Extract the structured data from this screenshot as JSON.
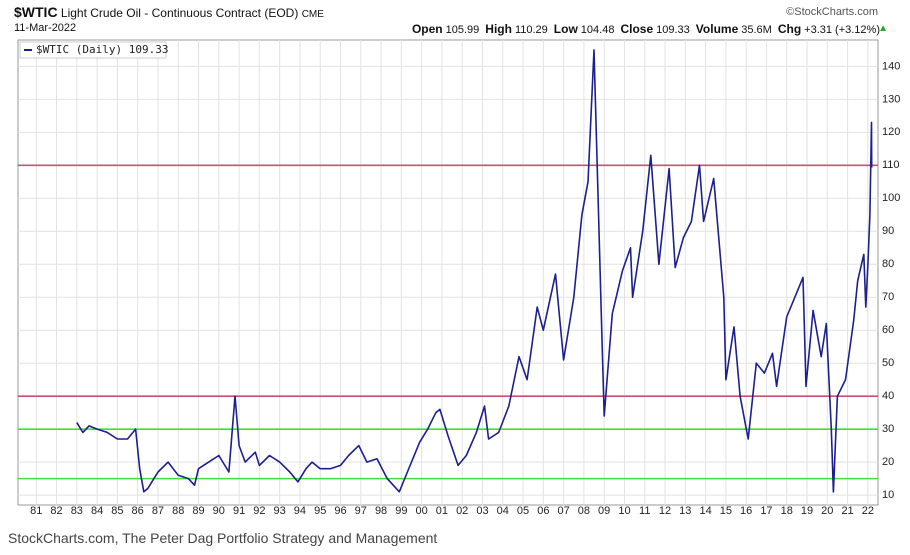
{
  "chart_data": {
    "type": "line",
    "title": "$WTIC",
    "subtitle": "Light Crude Oil - Continuous Contract (EOD)",
    "exchange": "CME",
    "source": "©StockCharts.com",
    "date": "11-Mar-2022",
    "quote": [
      {
        "label": "Open",
        "value": "105.99"
      },
      {
        "label": "High",
        "value": "110.29"
      },
      {
        "label": "Low",
        "value": "104.48"
      },
      {
        "label": "Close",
        "value": "109.33"
      },
      {
        "label": "Volume",
        "value": "35.6M"
      },
      {
        "label": "Chg",
        "value": "+3.31 (+3.12%)"
      }
    ],
    "caption": "StockCharts.com, The Peter Dag Portfolio Strategy and Management",
    "series": [
      {
        "name": "$WTIC (Daily) 109.33",
        "color": "#1b1f8f",
        "x": [
          1983.0,
          1983.3,
          1983.6,
          1984.0,
          1984.5,
          1985.0,
          1985.5,
          1985.9,
          1986.1,
          1986.3,
          1986.5,
          1986.8,
          1987.0,
          1987.5,
          1988.0,
          1988.5,
          1988.8,
          1989.0,
          1989.5,
          1990.0,
          1990.5,
          1990.8,
          1991.0,
          1991.3,
          1991.8,
          1992.0,
          1992.5,
          1993.0,
          1993.5,
          1993.9,
          1994.3,
          1994.6,
          1995.0,
          1995.5,
          1996.0,
          1996.4,
          1996.9,
          1997.3,
          1997.8,
          1998.3,
          1998.9,
          1999.3,
          1999.9,
          2000.3,
          2000.7,
          2000.9,
          2001.3,
          2001.8,
          2002.2,
          2002.7,
          2003.1,
          2003.3,
          2003.8,
          2004.3,
          2004.8,
          2005.2,
          2005.7,
          2006.0,
          2006.6,
          2007.0,
          2007.5,
          2007.9,
          2008.2,
          2008.5,
          2008.9,
          2009.0,
          2009.4,
          2009.9,
          2010.3,
          2010.4,
          2010.9,
          2011.3,
          2011.7,
          2012.2,
          2012.5,
          2012.9,
          2013.3,
          2013.7,
          2013.9,
          2014.4,
          2014.9,
          2015.0,
          2015.4,
          2015.7,
          2016.1,
          2016.5,
          2016.9,
          2017.3,
          2017.5,
          2018.0,
          2018.8,
          2018.95,
          2019.3,
          2019.7,
          2019.95,
          2020.2,
          2020.3,
          2020.5,
          2020.9,
          2021.3,
          2021.5,
          2021.8,
          2021.9,
          2022.0,
          2022.1,
          2022.18,
          2022.19
        ],
        "values": [
          32,
          29,
          31,
          30,
          29,
          27,
          27,
          30,
          18,
          11,
          12,
          15,
          17,
          20,
          16,
          15,
          13,
          18,
          20,
          22,
          17,
          40,
          25,
          20,
          23,
          19,
          22,
          20,
          17,
          14,
          18,
          20,
          18,
          18,
          19,
          22,
          25,
          20,
          21,
          15,
          11,
          17,
          26,
          30,
          35,
          36,
          28,
          19,
          22,
          29,
          37,
          27,
          29,
          37,
          52,
          45,
          67,
          60,
          77,
          51,
          70,
          95,
          105,
          145,
          55,
          34,
          65,
          78,
          85,
          70,
          90,
          113,
          80,
          109,
          79,
          88,
          93,
          110,
          93,
          106,
          70,
          45,
          61,
          40,
          27,
          50,
          47,
          53,
          43,
          64,
          76,
          43,
          66,
          52,
          62,
          30,
          11,
          40,
          45,
          63,
          75,
          83,
          67,
          80,
          95,
          123,
          109.33
        ]
      }
    ],
    "hlines": [
      {
        "value": 110,
        "color": "#c8506e"
      },
      {
        "value": 40,
        "color": "#c8506e"
      },
      {
        "value": 30,
        "color": "#3ee03e"
      },
      {
        "value": 15,
        "color": "#3ee03e"
      }
    ],
    "xlim": [
      1980.1,
      2022.5
    ],
    "xticks": [
      {
        "value": 1981,
        "label": "81"
      },
      {
        "value": 1982,
        "label": "82"
      },
      {
        "value": 1983,
        "label": "83"
      },
      {
        "value": 1984,
        "label": "84"
      },
      {
        "value": 1985,
        "label": "85"
      },
      {
        "value": 1986,
        "label": "86"
      },
      {
        "value": 1987,
        "label": "87"
      },
      {
        "value": 1988,
        "label": "88"
      },
      {
        "value": 1989,
        "label": "89"
      },
      {
        "value": 1990,
        "label": "90"
      },
      {
        "value": 1991,
        "label": "91"
      },
      {
        "value": 1992,
        "label": "92"
      },
      {
        "value": 1993,
        "label": "93"
      },
      {
        "value": 1994,
        "label": "94"
      },
      {
        "value": 1995,
        "label": "95"
      },
      {
        "value": 1996,
        "label": "96"
      },
      {
        "value": 1997,
        "label": "97"
      },
      {
        "value": 1998,
        "label": "98"
      },
      {
        "value": 1999,
        "label": "99"
      },
      {
        "value": 2000,
        "label": "00"
      },
      {
        "value": 2001,
        "label": "01"
      },
      {
        "value": 2002,
        "label": "02"
      },
      {
        "value": 2003,
        "label": "03"
      },
      {
        "value": 2004,
        "label": "04"
      },
      {
        "value": 2005,
        "label": "05"
      },
      {
        "value": 2006,
        "label": "06"
      },
      {
        "value": 2007,
        "label": "07"
      },
      {
        "value": 2008,
        "label": "08"
      },
      {
        "value": 2009,
        "label": "09"
      },
      {
        "value": 2010,
        "label": "10"
      },
      {
        "value": 2011,
        "label": "11"
      },
      {
        "value": 2012,
        "label": "12"
      },
      {
        "value": 2013,
        "label": "13"
      },
      {
        "value": 2014,
        "label": "14"
      },
      {
        "value": 2015,
        "label": "15"
      },
      {
        "value": 2016,
        "label": "16"
      },
      {
        "value": 2017,
        "label": "17"
      },
      {
        "value": 2018,
        "label": "18"
      },
      {
        "value": 2019,
        "label": "19"
      },
      {
        "value": 2020,
        "label": "20"
      },
      {
        "value": 2021,
        "label": "21"
      },
      {
        "value": 2022,
        "label": "22"
      }
    ],
    "ylim": [
      7,
      148
    ],
    "yticks": [
      10,
      20,
      30,
      40,
      50,
      60,
      70,
      80,
      90,
      100,
      110,
      120,
      130,
      140
    ],
    "grid": true
  }
}
